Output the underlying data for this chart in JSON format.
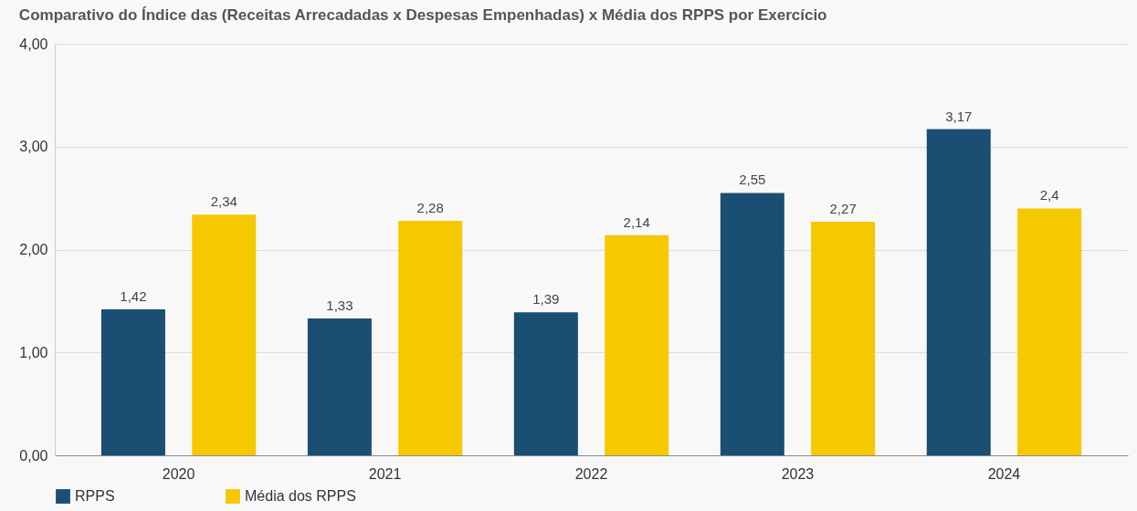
{
  "chart_data": {
    "type": "bar",
    "title": "Comparativo do Índice das (Receitas Arrecadadas x Despesas Empenhadas) x Média dos RPPS por Exercício",
    "categories": [
      "2020",
      "2021",
      "2022",
      "2023",
      "2024"
    ],
    "series": [
      {
        "name": "RPPS",
        "color": "#1a4e72",
        "values": [
          1.42,
          1.33,
          1.39,
          2.55,
          3.17
        ],
        "value_labels": [
          "1,42",
          "1,33",
          "1,39",
          "2,55",
          "3,17"
        ]
      },
      {
        "name": "Média dos RPPS",
        "color": "#f5c800",
        "values": [
          2.34,
          2.28,
          2.14,
          2.27,
          2.4
        ],
        "value_labels": [
          "2,34",
          "2,28",
          "2,14",
          "2,27",
          "2,4"
        ]
      }
    ],
    "ylim": [
      0,
      4
    ],
    "yticks": [
      {
        "value": 0,
        "label": "0,00"
      },
      {
        "value": 1,
        "label": "1,00"
      },
      {
        "value": 2,
        "label": "2,00"
      },
      {
        "value": 3,
        "label": "3,00"
      },
      {
        "value": 4,
        "label": "4,00"
      }
    ],
    "grid": "y",
    "legend": "bottom left"
  }
}
